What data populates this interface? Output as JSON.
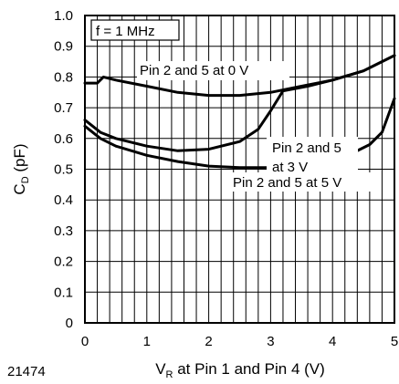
{
  "chart_data": {
    "type": "line",
    "title": "",
    "xlabel": "V",
    "xlabel_sub": "R",
    "xlabel_rest": " at Pin 1 and Pin 4 (V)",
    "ylabel": "C",
    "ylabel_sub": "D",
    "ylabel_rest": " (pF)",
    "figure_id": "21474",
    "condition": "f = 1 MHz",
    "xlim": [
      0,
      5
    ],
    "ylim": [
      0,
      1.0
    ],
    "xticks": [
      "0",
      "1",
      "2",
      "3",
      "4",
      "5"
    ],
    "yticks": [
      "0",
      "0.1",
      "0.2",
      "0.3",
      "0.4",
      "0.5",
      "0.6",
      "0.7",
      "0.8",
      "0.9",
      "1.0"
    ],
    "grid": true,
    "series": [
      {
        "name": "Pin 2 and 5 at 0 V",
        "x": [
          0.0,
          0.2,
          0.3,
          0.5,
          1.0,
          1.5,
          2.0,
          2.5,
          3.0,
          3.5,
          4.0,
          4.5,
          5.0
        ],
        "y": [
          0.78,
          0.78,
          0.8,
          0.79,
          0.77,
          0.75,
          0.74,
          0.74,
          0.75,
          0.77,
          0.79,
          0.82,
          0.87
        ]
      },
      {
        "name": "Pin 2 and 5 at 3 V",
        "x": [
          0.0,
          0.25,
          0.5,
          1.0,
          1.5,
          2.0,
          2.5,
          2.8,
          3.0,
          3.2,
          3.6,
          4.0,
          4.5,
          5.0
        ],
        "y": [
          0.66,
          0.62,
          0.6,
          0.575,
          0.56,
          0.565,
          0.59,
          0.63,
          0.69,
          0.755,
          0.77,
          0.79,
          0.82,
          0.87
        ]
      },
      {
        "name": "Pin 2 and 5 at 5 V",
        "x": [
          0.0,
          0.25,
          0.5,
          1.0,
          1.5,
          2.0,
          2.5,
          3.0,
          3.5,
          4.0,
          4.3,
          4.6,
          4.8,
          5.0
        ],
        "y": [
          0.64,
          0.6,
          0.575,
          0.545,
          0.525,
          0.51,
          0.505,
          0.505,
          0.51,
          0.53,
          0.55,
          0.58,
          0.62,
          0.73
        ]
      }
    ]
  }
}
